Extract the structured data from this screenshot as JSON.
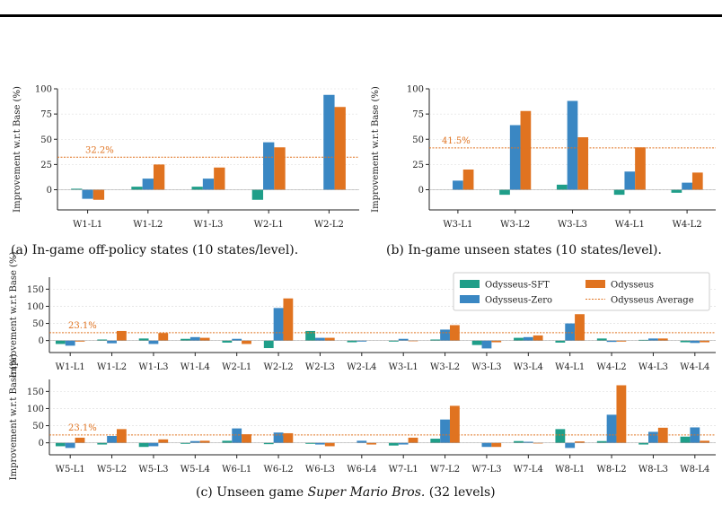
{
  "colors": {
    "sft": "#1f9e89",
    "zero": "#3a87c3",
    "ody": "#e07320",
    "avg": "#e07320"
  },
  "legend": {
    "sft": "Odysseus-SFT",
    "zero": "Odysseus-Zero",
    "ody": "Odysseus",
    "avg": "Odysseus Average"
  },
  "captions": {
    "a": "(a) In-game off-policy states (10 states/level).",
    "b": "(b) In-game unseen states (10 states/level).",
    "c_prefix": "(c) Unseen game ",
    "c_game": "Super Mario Bros.",
    "c_suffix": " (32 levels)"
  },
  "chart_data": [
    {
      "id": "a",
      "type": "bar",
      "ylabel": "Improvement w.r.t Base (%)",
      "ylim": [
        -20,
        100
      ],
      "yticks": [
        0,
        25,
        50,
        75,
        100
      ],
      "average": 32.2,
      "average_label": "32.2%",
      "categories": [
        "W1-L1",
        "W1-L2",
        "W1-L3",
        "W2-L1",
        "W2-L2"
      ],
      "series": [
        {
          "name": "Odysseus-SFT",
          "values": [
            1,
            3,
            3,
            -10,
            0
          ]
        },
        {
          "name": "Odysseus-Zero",
          "values": [
            -9,
            11,
            11,
            47,
            94
          ]
        },
        {
          "name": "Odysseus",
          "values": [
            -10,
            25,
            22,
            42,
            82
          ]
        }
      ]
    },
    {
      "id": "b",
      "type": "bar",
      "ylabel": "Improvement w.r.t Base (%)",
      "ylim": [
        -20,
        100
      ],
      "yticks": [
        0,
        25,
        50,
        75,
        100
      ],
      "average": 41.5,
      "average_label": "41.5%",
      "categories": [
        "W3-L1",
        "W3-L2",
        "W3-L3",
        "W4-L1",
        "W4-L2"
      ],
      "series": [
        {
          "name": "Odysseus-SFT",
          "values": [
            0,
            -5,
            5,
            -5,
            -3
          ]
        },
        {
          "name": "Odysseus-Zero",
          "values": [
            9,
            64,
            88,
            18,
            7
          ]
        },
        {
          "name": "Odysseus",
          "values": [
            20,
            78,
            52,
            42,
            17
          ]
        }
      ]
    },
    {
      "id": "c1",
      "type": "bar",
      "ylabel": "Improvement w.r.t Base (%)",
      "ylim": [
        -35,
        185
      ],
      "yticks": [
        0,
        50,
        100,
        150
      ],
      "average": 23.1,
      "average_label": "23.1%",
      "categories": [
        "W1-L1",
        "W1-L2",
        "W1-L3",
        "W1-L4",
        "W2-L1",
        "W2-L2",
        "W2-L3",
        "W2-L4",
        "W3-L1",
        "W3-L2",
        "W3-L3",
        "W3-L4",
        "W4-L1",
        "W4-L2",
        "W4-L3",
        "W4-L4"
      ],
      "series": [
        {
          "name": "Odysseus-SFT",
          "values": [
            -10,
            3,
            6,
            5,
            -6,
            -22,
            28,
            -5,
            -3,
            3,
            -13,
            8,
            -6,
            6,
            2,
            -5
          ]
        },
        {
          "name": "Odysseus-Zero",
          "values": [
            -15,
            -8,
            -10,
            10,
            5,
            95,
            8,
            -3,
            5,
            32,
            -23,
            10,
            50,
            -4,
            6,
            -7
          ]
        },
        {
          "name": "Odysseus",
          "values": [
            -3,
            28,
            22,
            8,
            -10,
            123,
            8,
            0,
            -2,
            45,
            -5,
            15,
            77,
            -3,
            6,
            -5
          ]
        }
      ]
    },
    {
      "id": "c2",
      "type": "bar",
      "ylabel": "Improvement w.r.t Base (%)",
      "ylim": [
        -35,
        185
      ],
      "yticks": [
        0,
        50,
        100,
        150
      ],
      "average": 23.1,
      "average_label": "23.1%",
      "categories": [
        "W5-L1",
        "W5-L2",
        "W5-L3",
        "W5-L4",
        "W6-L1",
        "W6-L2",
        "W6-L3",
        "W6-L4",
        "W7-L1",
        "W7-L2",
        "W7-L3",
        "W7-L4",
        "W8-L1",
        "W8-L2",
        "W8-L3",
        "W8-L4"
      ],
      "series": [
        {
          "name": "Odysseus-SFT",
          "values": [
            -10,
            -5,
            -12,
            -3,
            6,
            -4,
            -3,
            0,
            -8,
            12,
            0,
            5,
            40,
            5,
            -5,
            18
          ]
        },
        {
          "name": "Odysseus-Zero",
          "values": [
            -15,
            20,
            -10,
            5,
            42,
            30,
            -5,
            6,
            -5,
            68,
            -12,
            3,
            -15,
            82,
            32,
            45
          ]
        },
        {
          "name": "Odysseus",
          "values": [
            15,
            40,
            10,
            6,
            25,
            28,
            -10,
            -5,
            15,
            108,
            -12,
            -2,
            4,
            168,
            44,
            6
          ]
        }
      ]
    }
  ]
}
